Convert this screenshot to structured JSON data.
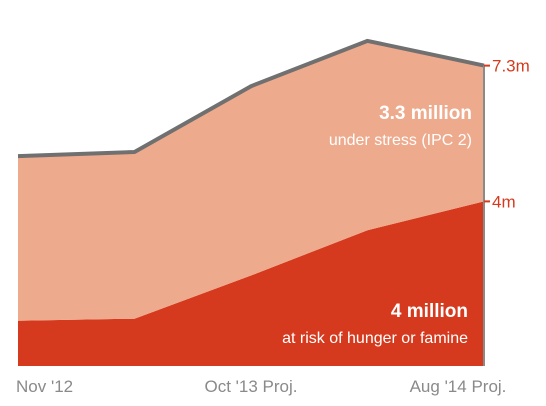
{
  "chart_data": {
    "type": "area",
    "stacked": true,
    "categories": [
      "Nov '12",
      "",
      "Oct '13 Proj.",
      "",
      "Aug '14 Proj."
    ],
    "x_tick_labels": [
      "Nov '12",
      "Oct '13 Proj.",
      "Aug '14 Proj."
    ],
    "series": [
      {
        "values": [
          1.1,
          1.15,
          2.2,
          3.3,
          4.0
        ],
        "color": "#d63a1e"
      },
      {
        "values": [
          4.0,
          4.05,
          4.6,
          4.6,
          3.3
        ],
        "color": "#eeaa8c"
      }
    ],
    "total_line": {
      "values": [
        5.1,
        5.2,
        6.8,
        7.9,
        7.3
      ],
      "color": "#707070"
    },
    "right_labels": [
      "7.3m",
      "4m"
    ],
    "annotations": [
      {
        "value": "3.3 million",
        "text": "under stress (IPC 2)"
      },
      {
        "value": "4 million",
        "text": "at risk of hunger or famine"
      }
    ],
    "ylim": [
      0,
      8.7
    ],
    "grid": false,
    "legend": "none"
  }
}
